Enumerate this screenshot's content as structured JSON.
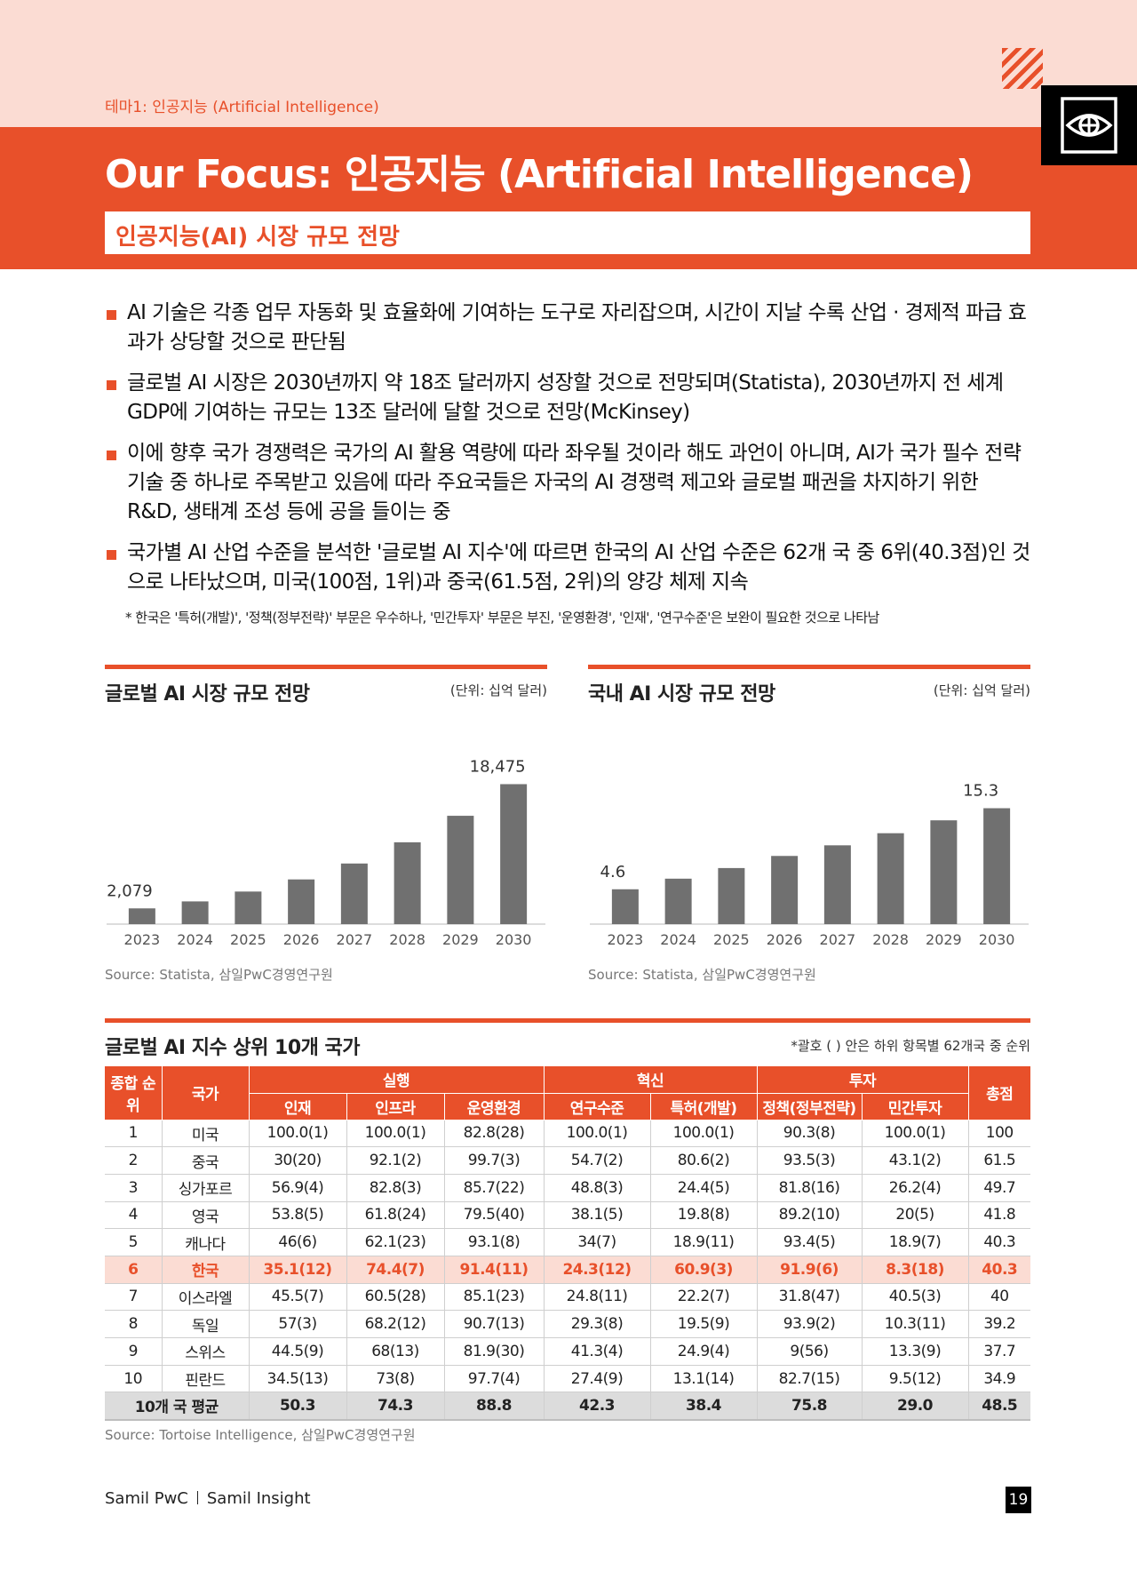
{
  "header": {
    "breadcrumb": "테마1: 인공지능 (Artificial Intelligence)",
    "title": "Our Focus: 인공지능 (Artificial Intelligence)",
    "subtitle": "인공지능(AI) 시장 규모 전망"
  },
  "bullets": [
    "AI 기술은 각종 업무 자동화 및 효율화에 기여하는 도구로 자리잡으며, 시간이 지날 수록 산업 · 경제적 파급 효과가 상당할 것으로 판단됨",
    "글로벌 AI 시장은 2030년까지 약 18조 달러까지 성장할 것으로 전망되며(Statista), 2030년까지 전 세계 GDP에 기여하는 규모는 13조 달러에 달할 것으로 전망(McKinsey)",
    "이에 향후 국가 경쟁력은 국가의 AI 활용 역량에 따라 좌우될 것이라 해도 과언이 아니며, AI가 국가 필수 전략기술 중 하나로 주목받고 있음에 따라 주요국들은 자국의 AI 경쟁력 제고와 글로벌 패권을 차지하기 위한 R&D, 생태계 조성 등에 공을 들이는 중",
    "국가별 AI 산업 수준을 분석한 '글로벌 AI 지수'에 따르면 한국의 AI 산업 수준은 62개 국 중 6위(40.3점)인 것으로 나타났으며, 미국(100점, 1위)과 중국(61.5점, 2위)의 양강 체제 지속"
  ],
  "note": "* 한국은 '특허(개발)', '정책(정부전략)' 부문은 우수하나, '민간투자' 부문은 부진, '운영환경', '인재', '연구수준'은 보완이 필요한 것으로 나타남",
  "chart_data": [
    {
      "type": "bar",
      "title": "글로벌 AI 시장 규모 전망",
      "unit": "(단위: 십억 달러)",
      "categories": [
        "2023",
        "2024",
        "2025",
        "2026",
        "2027",
        "2028",
        "2029",
        "2030"
      ],
      "values": [
        2079,
        3000,
        4300,
        5900,
        8000,
        10800,
        14300,
        18475
      ],
      "value_labels": [
        "2,079",
        "",
        "",
        "",
        "",
        "",
        "",
        "18,475"
      ],
      "ylim": [
        0,
        19000
      ],
      "grid": false,
      "color": "#707070",
      "source": "Source: Statista, 삼일PwC경영연구원"
    },
    {
      "type": "bar",
      "title": "국내 AI 시장 규모 전망",
      "unit": "(단위: 십억 달러)",
      "categories": [
        "2023",
        "2024",
        "2025",
        "2026",
        "2027",
        "2028",
        "2029",
        "2030"
      ],
      "values": [
        4.6,
        6.0,
        7.4,
        9.0,
        10.4,
        12.0,
        13.7,
        15.3
      ],
      "value_labels": [
        "4.6",
        "",
        "",
        "",
        "",
        "",
        "",
        "15.3"
      ],
      "ylim": [
        0,
        19
      ],
      "grid": false,
      "color": "#707070",
      "source": "Source: Statista, 삼일PwC경영연구원"
    }
  ],
  "table": {
    "title": "글로벌 AI 지수 상위 10개 국가",
    "note": "*괄호 ( ) 안은 하위 항목별 62개국 중 순위",
    "header": {
      "rank": "종합 순위",
      "country": "국가",
      "group1": "실행",
      "group2": "혁신",
      "group3": "투자",
      "total": "총점",
      "cols": [
        "인재",
        "인프라",
        "운영환경",
        "연구수준",
        "특허(개발)",
        "정책(정부전략)",
        "민간투자"
      ]
    },
    "rows": [
      [
        "1",
        "미국",
        "100.0(1)",
        "100.0(1)",
        "82.8(28)",
        "100.0(1)",
        "100.0(1)",
        "90.3(8)",
        "100.0(1)",
        "100"
      ],
      [
        "2",
        "중국",
        "30(20)",
        "92.1(2)",
        "99.7(3)",
        "54.7(2)",
        "80.6(2)",
        "93.5(3)",
        "43.1(2)",
        "61.5"
      ],
      [
        "3",
        "싱가포르",
        "56.9(4)",
        "82.8(3)",
        "85.7(22)",
        "48.8(3)",
        "24.4(5)",
        "81.8(16)",
        "26.2(4)",
        "49.7"
      ],
      [
        "4",
        "영국",
        "53.8(5)",
        "61.8(24)",
        "79.5(40)",
        "38.1(5)",
        "19.8(8)",
        "89.2(10)",
        "20(5)",
        "41.8"
      ],
      [
        "5",
        "캐나다",
        "46(6)",
        "62.1(23)",
        "93.1(8)",
        "34(7)",
        "18.9(11)",
        "93.4(5)",
        "18.9(7)",
        "40.3"
      ],
      [
        "6",
        "한국",
        "35.1(12)",
        "74.4(7)",
        "91.4(11)",
        "24.3(12)",
        "60.9(3)",
        "91.9(6)",
        "8.3(18)",
        "40.3"
      ],
      [
        "7",
        "이스라엘",
        "45.5(7)",
        "60.5(28)",
        "85.1(23)",
        "24.8(11)",
        "22.2(7)",
        "31.8(47)",
        "40.5(3)",
        "40"
      ],
      [
        "8",
        "독일",
        "57(3)",
        "68.2(12)",
        "90.7(13)",
        "29.3(8)",
        "19.5(9)",
        "93.9(2)",
        "10.3(11)",
        "39.2"
      ],
      [
        "9",
        "스위스",
        "44.5(9)",
        "68(13)",
        "81.9(30)",
        "41.3(4)",
        "24.9(4)",
        "9(56)",
        "13.3(9)",
        "37.7"
      ],
      [
        "10",
        "핀란드",
        "34.5(13)",
        "73(8)",
        "97.7(4)",
        "27.4(9)",
        "13.1(14)",
        "82.7(15)",
        "9.5(12)",
        "34.9"
      ]
    ],
    "avg_row": [
      "10개 국 평균",
      "50.3",
      "74.3",
      "88.8",
      "42.3",
      "38.4",
      "75.8",
      "29.0",
      "48.5"
    ],
    "highlight_row": 5,
    "source": "Source: Tortoise Intelligence, 삼일PwC경영연구원"
  },
  "footer": {
    "left1": "Samil PwC",
    "left2": "Samil Insight",
    "page": "19"
  },
  "colors": {
    "accent": "#e8502a",
    "accent_light": "#fbdcd3",
    "bar": "#707070"
  }
}
